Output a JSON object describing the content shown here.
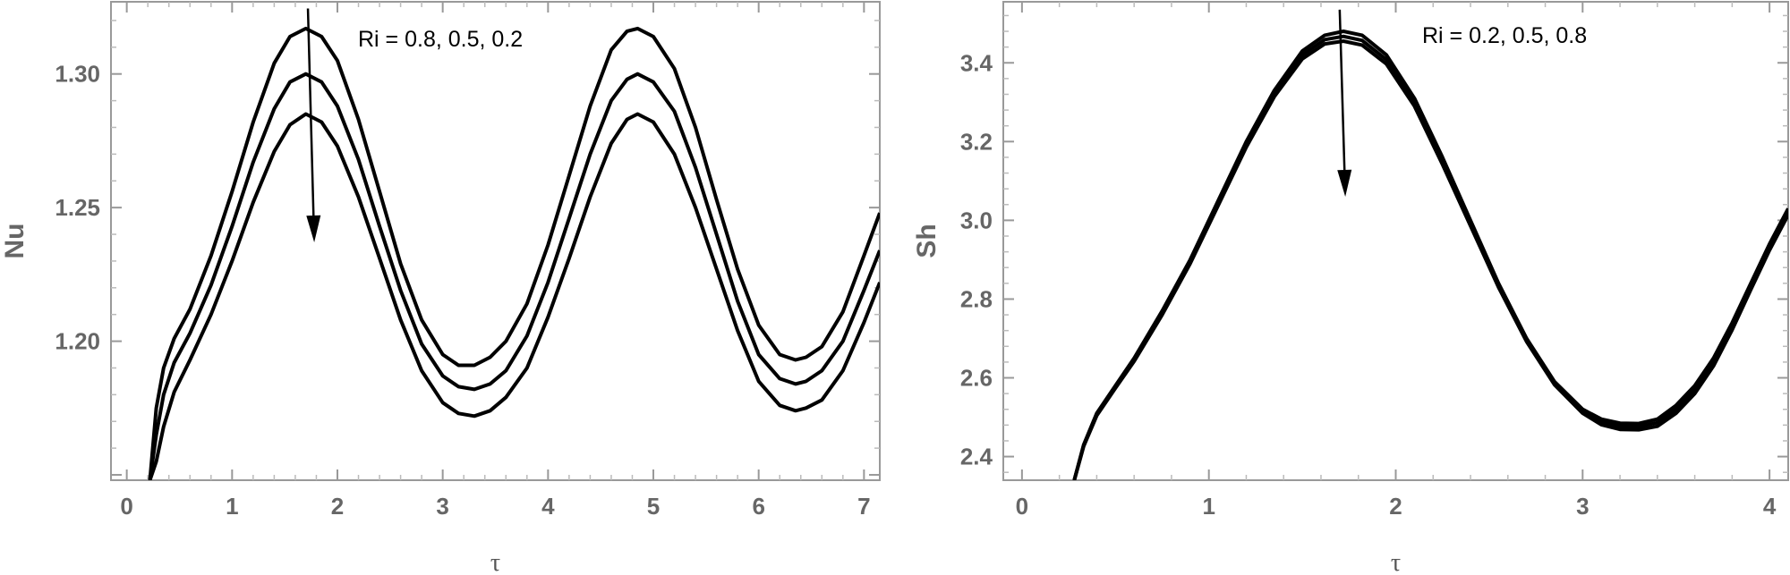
{
  "chart_data": [
    {
      "id": "nu-chart",
      "type": "line",
      "xlabel": "τ",
      "ylabel": "Nu",
      "xlim": [
        -0.15,
        7.15
      ],
      "ylim": [
        1.148,
        1.327
      ],
      "xticks": [
        0,
        1,
        2,
        3,
        4,
        5,
        6,
        7
      ],
      "yticks": [
        1.2,
        1.25,
        1.3
      ],
      "ytick_labels": [
        "1.20",
        "1.25",
        "1.30"
      ],
      "annotation": "Ri = 0.8, 0.5, 0.2",
      "arrow": {
        "from": [
          1.72,
          1.3245
        ],
        "to": [
          1.78,
          1.237
        ]
      },
      "grid": false,
      "series": [
        {
          "x": [
            0.22,
            0.28,
            0.35,
            0.45,
            0.6,
            0.8,
            1.0,
            1.2,
            1.4,
            1.55,
            1.7,
            1.85,
            2.0,
            2.2,
            2.4,
            2.6,
            2.8,
            3.0,
            3.15,
            3.3,
            3.45,
            3.6,
            3.8,
            4.0,
            4.2,
            4.4,
            4.6,
            4.75,
            4.85,
            5.0,
            5.2,
            5.4,
            5.6,
            5.8,
            6.0,
            6.2,
            6.35,
            6.45,
            6.6,
            6.8,
            7.0,
            7.15
          ],
          "values": [
            1.148,
            1.175,
            1.19,
            1.201,
            1.212,
            1.232,
            1.256,
            1.282,
            1.304,
            1.314,
            1.317,
            1.314,
            1.305,
            1.283,
            1.256,
            1.229,
            1.208,
            1.195,
            1.191,
            1.191,
            1.194,
            1.2,
            1.214,
            1.236,
            1.262,
            1.288,
            1.309,
            1.316,
            1.317,
            1.314,
            1.302,
            1.28,
            1.253,
            1.227,
            1.206,
            1.195,
            1.193,
            1.194,
            1.198,
            1.211,
            1.232,
            1.248
          ]
        },
        {
          "x": [
            0.22,
            0.28,
            0.35,
            0.45,
            0.6,
            0.8,
            1.0,
            1.2,
            1.4,
            1.55,
            1.7,
            1.85,
            2.0,
            2.2,
            2.4,
            2.6,
            2.8,
            3.0,
            3.15,
            3.3,
            3.45,
            3.6,
            3.8,
            4.0,
            4.2,
            4.4,
            4.6,
            4.75,
            4.85,
            5.0,
            5.2,
            5.4,
            5.6,
            5.8,
            6.0,
            6.2,
            6.35,
            6.45,
            6.6,
            6.8,
            7.0,
            7.15
          ],
          "values": [
            1.148,
            1.165,
            1.18,
            1.192,
            1.203,
            1.221,
            1.243,
            1.267,
            1.287,
            1.297,
            1.3,
            1.297,
            1.288,
            1.268,
            1.243,
            1.219,
            1.199,
            1.187,
            1.183,
            1.182,
            1.184,
            1.189,
            1.202,
            1.222,
            1.246,
            1.27,
            1.29,
            1.298,
            1.3,
            1.297,
            1.286,
            1.265,
            1.24,
            1.215,
            1.195,
            1.186,
            1.184,
            1.185,
            1.189,
            1.2,
            1.219,
            1.234
          ]
        },
        {
          "x": [
            0.22,
            0.28,
            0.35,
            0.45,
            0.6,
            0.8,
            1.0,
            1.2,
            1.4,
            1.55,
            1.7,
            1.85,
            2.0,
            2.2,
            2.4,
            2.6,
            2.8,
            3.0,
            3.15,
            3.3,
            3.45,
            3.6,
            3.8,
            4.0,
            4.2,
            4.4,
            4.6,
            4.75,
            4.85,
            5.0,
            5.2,
            5.4,
            5.6,
            5.8,
            6.0,
            6.2,
            6.35,
            6.45,
            6.6,
            6.8,
            7.0,
            7.15
          ],
          "values": [
            1.148,
            1.155,
            1.168,
            1.181,
            1.193,
            1.21,
            1.23,
            1.252,
            1.271,
            1.281,
            1.285,
            1.282,
            1.273,
            1.254,
            1.231,
            1.208,
            1.189,
            1.177,
            1.173,
            1.172,
            1.174,
            1.179,
            1.19,
            1.209,
            1.231,
            1.254,
            1.274,
            1.283,
            1.285,
            1.282,
            1.27,
            1.25,
            1.227,
            1.204,
            1.185,
            1.176,
            1.174,
            1.175,
            1.178,
            1.189,
            1.207,
            1.222
          ]
        }
      ]
    },
    {
      "id": "sh-chart",
      "type": "line",
      "xlabel": "τ",
      "ylabel": "Sh",
      "xlim": [
        -0.1,
        4.1
      ],
      "ylim": [
        2.34,
        3.555
      ],
      "xticks": [
        0,
        1,
        2,
        3,
        4
      ],
      "yticks": [
        2.4,
        2.6,
        2.8,
        3.0,
        3.2,
        3.4
      ],
      "ytick_labels": [
        "2.4",
        "2.6",
        "2.8",
        "3.0",
        "3.2",
        "3.4"
      ],
      "annotation": "Ri = 0.2, 0.5, 0.8",
      "arrow": {
        "from": [
          1.7,
          3.535
        ],
        "to": [
          1.73,
          3.06
        ]
      },
      "grid": false,
      "series": [
        {
          "x": [
            0.28,
            0.33,
            0.4,
            0.5,
            0.6,
            0.75,
            0.9,
            1.05,
            1.2,
            1.35,
            1.5,
            1.62,
            1.72,
            1.82,
            1.95,
            2.1,
            2.25,
            2.4,
            2.55,
            2.7,
            2.85,
            3.0,
            3.1,
            3.2,
            3.3,
            3.4,
            3.5,
            3.6,
            3.7,
            3.8,
            3.9,
            4.0,
            4.1
          ],
          "values": [
            2.34,
            2.43,
            2.51,
            2.58,
            2.65,
            2.77,
            2.9,
            3.05,
            3.2,
            3.33,
            3.43,
            3.47,
            3.48,
            3.47,
            3.42,
            3.31,
            3.16,
            3.0,
            2.84,
            2.7,
            2.59,
            2.52,
            2.495,
            2.485,
            2.484,
            2.495,
            2.53,
            2.58,
            2.65,
            2.74,
            2.84,
            2.94,
            3.03
          ]
        },
        {
          "x": [
            0.28,
            0.33,
            0.4,
            0.5,
            0.6,
            0.75,
            0.9,
            1.05,
            1.2,
            1.35,
            1.5,
            1.62,
            1.72,
            1.82,
            1.95,
            2.1,
            2.25,
            2.4,
            2.55,
            2.7,
            2.85,
            3.0,
            3.1,
            3.2,
            3.3,
            3.4,
            3.5,
            3.6,
            3.7,
            3.8,
            3.9,
            4.0,
            4.1
          ],
          "values": [
            2.34,
            2.428,
            2.507,
            2.577,
            2.646,
            2.765,
            2.895,
            3.044,
            3.193,
            3.322,
            3.42,
            3.459,
            3.467,
            3.457,
            3.408,
            3.3,
            3.151,
            2.993,
            2.835,
            2.696,
            2.586,
            2.515,
            2.488,
            2.477,
            2.476,
            2.486,
            2.52,
            2.57,
            2.64,
            2.731,
            2.832,
            2.932,
            3.022
          ]
        },
        {
          "x": [
            0.28,
            0.33,
            0.4,
            0.5,
            0.6,
            0.75,
            0.9,
            1.05,
            1.2,
            1.35,
            1.5,
            1.62,
            1.72,
            1.82,
            1.95,
            2.1,
            2.25,
            2.4,
            2.55,
            2.7,
            2.85,
            3.0,
            3.1,
            3.2,
            3.3,
            3.4,
            3.5,
            3.6,
            3.7,
            3.8,
            3.9,
            4.0,
            4.1
          ],
          "values": [
            2.34,
            2.426,
            2.504,
            2.574,
            2.642,
            2.76,
            2.89,
            3.038,
            3.186,
            3.314,
            3.41,
            3.448,
            3.455,
            3.445,
            3.397,
            3.29,
            3.142,
            2.986,
            2.83,
            2.692,
            2.582,
            2.51,
            2.481,
            2.469,
            2.468,
            2.477,
            2.51,
            2.56,
            2.63,
            2.722,
            2.824,
            2.924,
            3.014
          ]
        }
      ]
    }
  ]
}
